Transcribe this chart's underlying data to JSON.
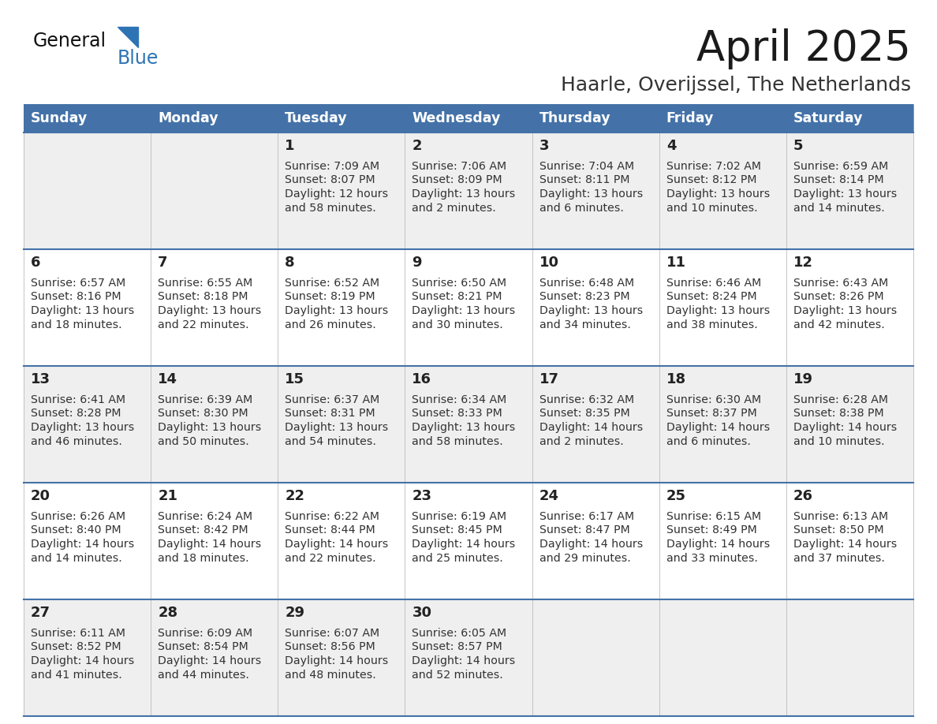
{
  "title": "April 2025",
  "subtitle": "Haarle, Overijssel, The Netherlands",
  "days_of_week": [
    "Sunday",
    "Monday",
    "Tuesday",
    "Wednesday",
    "Thursday",
    "Friday",
    "Saturday"
  ],
  "header_bg": "#4472A8",
  "header_text": "#FFFFFF",
  "row_bgs": [
    "#EFEFEF",
    "#FFFFFF",
    "#EFEFEF",
    "#FFFFFF",
    "#EFEFEF"
  ],
  "cell_border_color": "#AAAAAA",
  "row_border_color": "#4472A8",
  "day_number_color": "#222222",
  "content_color": "#333333",
  "title_color": "#1a1a1a",
  "subtitle_color": "#333333",
  "logo_general_color": "#111111",
  "logo_blue_color": "#2E74B5",
  "calendar_data": [
    [
      null,
      null,
      {
        "day": 1,
        "sunrise": "7:09 AM",
        "sunset": "8:07 PM",
        "dl_hours": "12 hours",
        "dl_mins": "and 58 minutes."
      },
      {
        "day": 2,
        "sunrise": "7:06 AM",
        "sunset": "8:09 PM",
        "dl_hours": "13 hours",
        "dl_mins": "and 2 minutes."
      },
      {
        "day": 3,
        "sunrise": "7:04 AM",
        "sunset": "8:11 PM",
        "dl_hours": "13 hours",
        "dl_mins": "and 6 minutes."
      },
      {
        "day": 4,
        "sunrise": "7:02 AM",
        "sunset": "8:12 PM",
        "dl_hours": "13 hours",
        "dl_mins": "and 10 minutes."
      },
      {
        "day": 5,
        "sunrise": "6:59 AM",
        "sunset": "8:14 PM",
        "dl_hours": "13 hours",
        "dl_mins": "and 14 minutes."
      }
    ],
    [
      {
        "day": 6,
        "sunrise": "6:57 AM",
        "sunset": "8:16 PM",
        "dl_hours": "13 hours",
        "dl_mins": "and 18 minutes."
      },
      {
        "day": 7,
        "sunrise": "6:55 AM",
        "sunset": "8:18 PM",
        "dl_hours": "13 hours",
        "dl_mins": "and 22 minutes."
      },
      {
        "day": 8,
        "sunrise": "6:52 AM",
        "sunset": "8:19 PM",
        "dl_hours": "13 hours",
        "dl_mins": "and 26 minutes."
      },
      {
        "day": 9,
        "sunrise": "6:50 AM",
        "sunset": "8:21 PM",
        "dl_hours": "13 hours",
        "dl_mins": "and 30 minutes."
      },
      {
        "day": 10,
        "sunrise": "6:48 AM",
        "sunset": "8:23 PM",
        "dl_hours": "13 hours",
        "dl_mins": "and 34 minutes."
      },
      {
        "day": 11,
        "sunrise": "6:46 AM",
        "sunset": "8:24 PM",
        "dl_hours": "13 hours",
        "dl_mins": "and 38 minutes."
      },
      {
        "day": 12,
        "sunrise": "6:43 AM",
        "sunset": "8:26 PM",
        "dl_hours": "13 hours",
        "dl_mins": "and 42 minutes."
      }
    ],
    [
      {
        "day": 13,
        "sunrise": "6:41 AM",
        "sunset": "8:28 PM",
        "dl_hours": "13 hours",
        "dl_mins": "and 46 minutes."
      },
      {
        "day": 14,
        "sunrise": "6:39 AM",
        "sunset": "8:30 PM",
        "dl_hours": "13 hours",
        "dl_mins": "and 50 minutes."
      },
      {
        "day": 15,
        "sunrise": "6:37 AM",
        "sunset": "8:31 PM",
        "dl_hours": "13 hours",
        "dl_mins": "and 54 minutes."
      },
      {
        "day": 16,
        "sunrise": "6:34 AM",
        "sunset": "8:33 PM",
        "dl_hours": "13 hours",
        "dl_mins": "and 58 minutes."
      },
      {
        "day": 17,
        "sunrise": "6:32 AM",
        "sunset": "8:35 PM",
        "dl_hours": "14 hours",
        "dl_mins": "and 2 minutes."
      },
      {
        "day": 18,
        "sunrise": "6:30 AM",
        "sunset": "8:37 PM",
        "dl_hours": "14 hours",
        "dl_mins": "and 6 minutes."
      },
      {
        "day": 19,
        "sunrise": "6:28 AM",
        "sunset": "8:38 PM",
        "dl_hours": "14 hours",
        "dl_mins": "and 10 minutes."
      }
    ],
    [
      {
        "day": 20,
        "sunrise": "6:26 AM",
        "sunset": "8:40 PM",
        "dl_hours": "14 hours",
        "dl_mins": "and 14 minutes."
      },
      {
        "day": 21,
        "sunrise": "6:24 AM",
        "sunset": "8:42 PM",
        "dl_hours": "14 hours",
        "dl_mins": "and 18 minutes."
      },
      {
        "day": 22,
        "sunrise": "6:22 AM",
        "sunset": "8:44 PM",
        "dl_hours": "14 hours",
        "dl_mins": "and 22 minutes."
      },
      {
        "day": 23,
        "sunrise": "6:19 AM",
        "sunset": "8:45 PM",
        "dl_hours": "14 hours",
        "dl_mins": "and 25 minutes."
      },
      {
        "day": 24,
        "sunrise": "6:17 AM",
        "sunset": "8:47 PM",
        "dl_hours": "14 hours",
        "dl_mins": "and 29 minutes."
      },
      {
        "day": 25,
        "sunrise": "6:15 AM",
        "sunset": "8:49 PM",
        "dl_hours": "14 hours",
        "dl_mins": "and 33 minutes."
      },
      {
        "day": 26,
        "sunrise": "6:13 AM",
        "sunset": "8:50 PM",
        "dl_hours": "14 hours",
        "dl_mins": "and 37 minutes."
      }
    ],
    [
      {
        "day": 27,
        "sunrise": "6:11 AM",
        "sunset": "8:52 PM",
        "dl_hours": "14 hours",
        "dl_mins": "and 41 minutes."
      },
      {
        "day": 28,
        "sunrise": "6:09 AM",
        "sunset": "8:54 PM",
        "dl_hours": "14 hours",
        "dl_mins": "and 44 minutes."
      },
      {
        "day": 29,
        "sunrise": "6:07 AM",
        "sunset": "8:56 PM",
        "dl_hours": "14 hours",
        "dl_mins": "and 48 minutes."
      },
      {
        "day": 30,
        "sunrise": "6:05 AM",
        "sunset": "8:57 PM",
        "dl_hours": "14 hours",
        "dl_mins": "and 52 minutes."
      },
      null,
      null,
      null
    ]
  ]
}
